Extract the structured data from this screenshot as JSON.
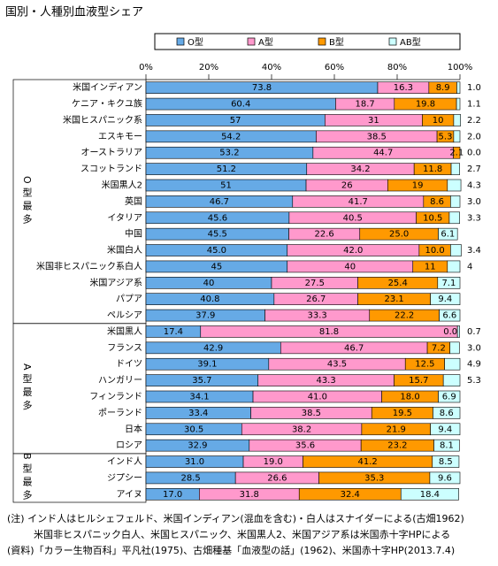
{
  "chart_data": {
    "type": "bar",
    "orientation": "horizontal",
    "stacked": true,
    "title": "国別・人種別血液型シェア",
    "groups": [
      {
        "label": "O型最多",
        "categories": [
          "米国インディアン",
          "ケニア・キクユ族",
          "米国ヒスパニック系",
          "エスキモー",
          "オーストラリア",
          "スコットランド",
          "米国黒人2",
          "英国",
          "イタリア",
          "中国",
          "米国白人",
          "米国非ヒスパニック系白人",
          "米国アジア系",
          "パプア",
          "ペルシア"
        ]
      },
      {
        "label": "A型最多",
        "categories": [
          "米国黒人",
          "フランス",
          "ドイツ",
          "ハンガリー",
          "フィンランド",
          "ポーランド",
          "日本",
          "ロシア"
        ]
      },
      {
        "label": "B型最多",
        "categories": [
          "インド人",
          "ジプシー",
          "アイヌ"
        ]
      }
    ],
    "series": [
      {
        "name": "O型",
        "color": "#66aae6",
        "values": [
          73.8,
          60.4,
          57,
          54.2,
          53.2,
          51.2,
          51,
          46.7,
          45.6,
          45.5,
          45,
          45,
          40,
          40.8,
          37.9,
          17.4,
          42.9,
          39.1,
          35.7,
          34.1,
          33.4,
          30.5,
          32.9,
          31,
          28.5,
          17
        ],
        "value_labels": [
          "73.8",
          "60.4",
          "57",
          "54.2",
          "53.2",
          "51.2",
          "51",
          "46.7",
          "45.6",
          "45.5",
          "45.0",
          "45",
          "40",
          "40.8",
          "37.9",
          "17.4",
          "42.9",
          "39.1",
          "35.7",
          "34.1",
          "33.4",
          "30.5",
          "32.9",
          "31.0",
          "28.5",
          "17.0"
        ]
      },
      {
        "name": "A型",
        "color": "#ff99cc",
        "values": [
          16.3,
          18.7,
          31,
          38.5,
          44.7,
          34.2,
          26,
          41.7,
          40.5,
          22.6,
          42,
          40,
          27.5,
          26.7,
          33.3,
          81.8,
          46.7,
          43.5,
          43.3,
          41,
          38.5,
          38.2,
          35.6,
          19,
          26.6,
          31.8
        ],
        "value_labels": [
          "16.3",
          "18.7",
          "31",
          "38.5",
          "44.7",
          "34.2",
          "26",
          "41.7",
          "40.5",
          "22.6",
          "42.0",
          "40",
          "27.5",
          "26.7",
          "33.3",
          "81.8",
          "46.7",
          "43.5",
          "43.3",
          "41.0",
          "38.5",
          "38.2",
          "35.6",
          "19.0",
          "26.6",
          "31.8"
        ]
      },
      {
        "name": "B型",
        "color": "#ff9900",
        "values": [
          8.9,
          19.8,
          10,
          5.3,
          2.1,
          11.8,
          19,
          8.6,
          10.5,
          25,
          10,
          11,
          25.4,
          23.1,
          22.2,
          0,
          7.2,
          12.5,
          15.7,
          18,
          19.5,
          21.9,
          23.2,
          41.2,
          35.3,
          32.4
        ],
        "value_labels": [
          "8.9",
          "19.8",
          "10",
          "5.3",
          "2.1",
          "11.8",
          "19",
          "8.6",
          "10.5",
          "25.0",
          "10.0",
          "11",
          "25.4",
          "23.1",
          "22.2",
          "0.0",
          "7.2",
          "12.5",
          "15.7",
          "18.0",
          "19.5",
          "21.9",
          "23.2",
          "41.2",
          "35.3",
          "32.4"
        ]
      },
      {
        "name": "AB型",
        "color": "#ccffff",
        "values": [
          1,
          1.1,
          2.2,
          2,
          0,
          2.7,
          4.3,
          3,
          3.3,
          6.1,
          3.4,
          4,
          7.1,
          9.4,
          6.6,
          0.7,
          3,
          4.9,
          5.3,
          6.9,
          8.6,
          9.4,
          8.1,
          8.5,
          9.6,
          18.4
        ],
        "value_labels": [
          "1.0",
          "1.1",
          "2.2",
          "2.0",
          "0.0",
          "2.7",
          "4.3",
          "3.0",
          "3.3",
          "6.1",
          "3.4",
          "4",
          "7.1",
          "9.4",
          "6.6",
          "0.7",
          "3.0",
          "4.9",
          "5.3",
          "6.9",
          "8.6",
          "9.4",
          "8.1",
          "8.5",
          "9.6",
          "18.4"
        ]
      }
    ],
    "xlim": [
      0,
      100
    ],
    "xticks": [
      {
        "value": 0,
        "label": "0%"
      },
      {
        "value": 20,
        "label": "20%"
      },
      {
        "value": 40,
        "label": "40%"
      },
      {
        "value": 60,
        "label": "60%"
      },
      {
        "value": 80,
        "label": "80%"
      },
      {
        "value": 100,
        "label": "100%"
      }
    ],
    "notes": [
      "(注) インド人はヒルシェフェルド、米国インディアン(混血を含む)・白人はスナイダーによる(古畑1962)",
      "米国非ヒスパニック白人、米国ヒスパニック、米国黒人2、米国アジア系は米国赤十字HPによる",
      "(資料)「カラー生物百科」平凡社(1975)、古畑種基「血液型の話」(1962)、米国赤十字HP(2013.7.4)"
    ]
  }
}
